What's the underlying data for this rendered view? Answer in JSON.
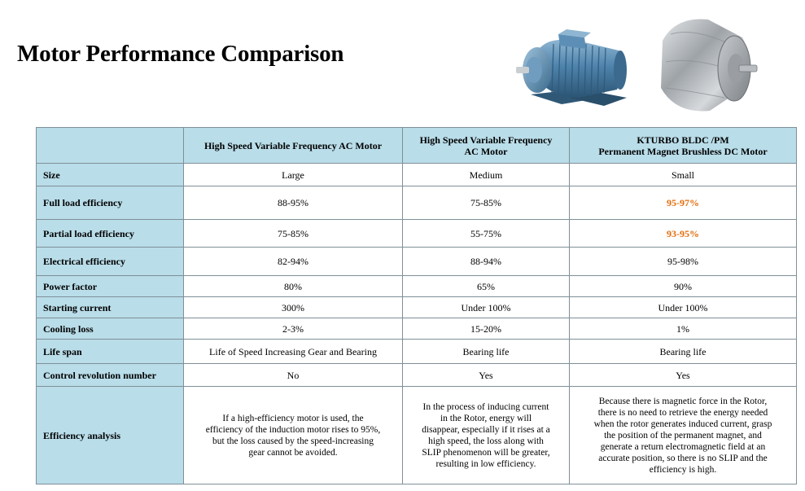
{
  "page": {
    "title": "Motor Performance Comparison"
  },
  "images": {
    "ac_motor": "ac-induction-motor-photo",
    "bldc_motor": "bldc-motor-photo"
  },
  "colors": {
    "header_bg": "#b9dde9",
    "highlight": "#e36c09",
    "border": "#7f8f98",
    "motor_blue": "#4a7fa7",
    "motor_silver": "#b8bcc0"
  },
  "table": {
    "columns": [
      {
        "line1": "",
        "line2": ""
      },
      {
        "line1": "High Speed  Variable Frequency AC Motor",
        "line2": ""
      },
      {
        "line1": "High Speed  Variable Frequency",
        "line2": "AC Motor"
      },
      {
        "line1": "KTURBO BLDC /PM",
        "line2": "Permanent Magnet  Brushless DC Motor"
      }
    ],
    "rows": [
      {
        "label": "Size",
        "c1": "Large",
        "c2": "Medium",
        "c3": "Small"
      },
      {
        "label": "Full load efficiency",
        "c1": "88-95%",
        "c2": "75-85%",
        "c3": "95-97%"
      },
      {
        "label": "Partial load efficiency",
        "c1": "75-85%",
        "c2": "55-75%",
        "c3": "93-95%"
      },
      {
        "label": "Electrical efficiency",
        "c1": "82-94%",
        "c2": "88-94%",
        "c3": "95-98%"
      },
      {
        "label": "Power factor",
        "c1": "80%",
        "c2": "65%",
        "c3": "90%"
      },
      {
        "label": "Starting current",
        "c1": "300%",
        "c2": "Under 100%",
        "c3": "Under 100%"
      },
      {
        "label": "Cooling loss",
        "c1": "2-3%",
        "c2": "15-20%",
        "c3": "1%"
      },
      {
        "label": "Life span",
        "c1": "Life of Speed Increasing Gear and Bearing",
        "c2": "Bearing life",
        "c3": "Bearing life"
      },
      {
        "label": "Control revolution number",
        "c1": "No",
        "c2": "Yes",
        "c3": "Yes"
      }
    ],
    "analysis": {
      "label": "Efficiency analysis",
      "c1": [
        "If a high-efficiency motor is used, the",
        "efficiency of the induction motor rises  to 95%,",
        "but the loss  caused by the speed-increasing",
        "gear cannot be avoided."
      ],
      "c2": [
        "In the process  of inducing current",
        "in the Rotor, energy will",
        "disappear, especially if it rises  at a",
        "high speed, the loss along with",
        "SLIP phenomenon will be greater,",
        "resulting in low efficiency."
      ],
      "c3": [
        "Because there is magnetic force in the Rotor,",
        "there is no need to retrieve  the energy needed",
        "when the rotor generates induced current,  grasp",
        "the position of the permanent magnet, and",
        "generate a return electromagnetic field at an",
        "accurate position, so there is no SLIP and the",
        "efficiency is high."
      ]
    }
  }
}
